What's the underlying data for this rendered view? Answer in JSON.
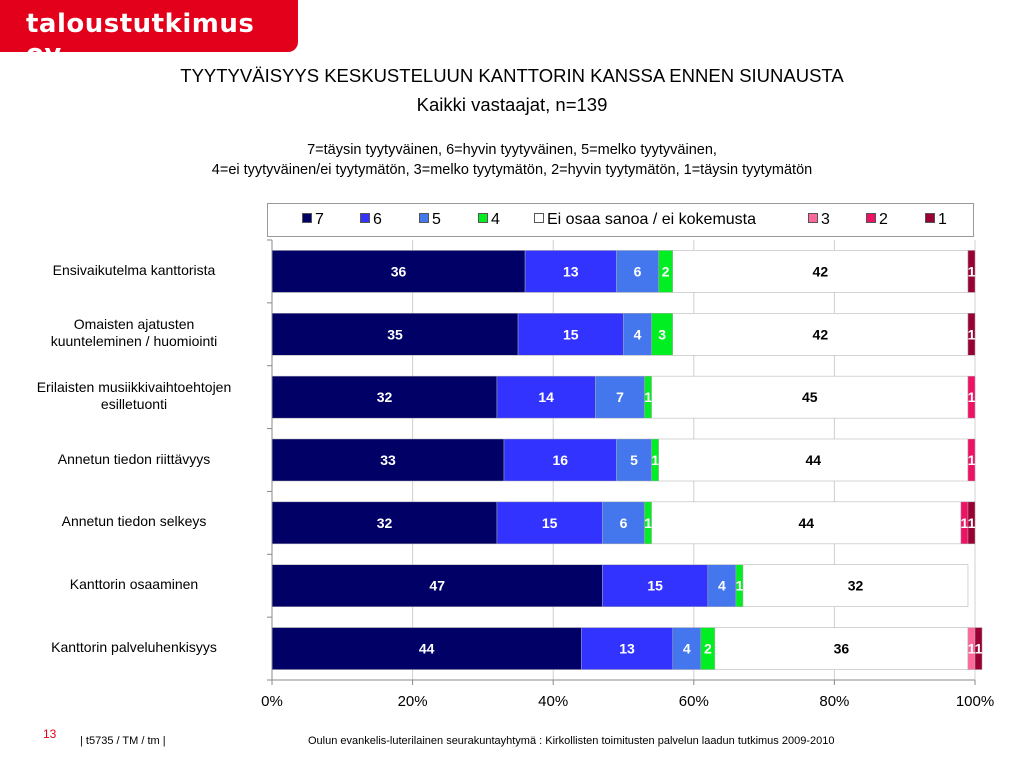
{
  "brand": {
    "logo_text": "taloustutkimus oy",
    "color": "#e2001a"
  },
  "title": "TYYTYVÄISYYS KESKUSTELUUN KANTTORIN KANSSA ENNEN SIUNAUSTA",
  "subtitle_group": "Kaikki  vastaajat, n=139",
  "scale_note_1": "7=täysin tyytyväinen, 6=hyvin tyytyväinen, 5=melko tyytyväinen,",
  "scale_note_2": "4=ei tyytyväinen/ei tyytymätön, 3=melko tyytymätön, 2=hyvin tyytymätön, 1=täysin tyytymätön",
  "footer": {
    "page_number": "13",
    "code": "|  t5735 / TM / tm |",
    "org": "Oulun evankelis-luterilainen seurakuntayhtymä : Kirkollisten toimitusten palvelun laadun tutkimus 2009-2010"
  },
  "chart_data": {
    "type": "bar",
    "orientation": "horizontal",
    "stacked": "percent",
    "xlim": [
      0,
      100
    ],
    "x_ticks": [
      "0%",
      "20%",
      "40%",
      "60%",
      "80%",
      "100%"
    ],
    "legend_position": "top",
    "categories": [
      "Ensivaikutelma kanttorista",
      "Omaisten ajatusten kuunteleminen / huomiointi",
      "Erilaisten musiikkivaihtoehtojen esilletuonti",
      "Annetun tiedon riittävyys",
      "Annetun tiedon selkeys",
      "Kanttorin osaaminen",
      "Kanttorin palveluhenkisyys"
    ],
    "category_lines": [
      [
        "Ensivaikutelma kanttorista"
      ],
      [
        "Omaisten ajatusten",
        "kuunteleminen / huomiointi"
      ],
      [
        "Erilaisten musiikkivaihtoehtojen",
        "esilletuonti"
      ],
      [
        "Annetun tiedon riittävyys"
      ],
      [
        "Annetun tiedon selkeys"
      ],
      [
        "Kanttorin osaaminen"
      ],
      [
        "Kanttorin palveluhenkisyys"
      ]
    ],
    "series": [
      {
        "name": "7",
        "color": "#000066",
        "label_color": "#ffffff",
        "values": [
          36,
          35,
          32,
          33,
          32,
          47,
          44
        ]
      },
      {
        "name": "6",
        "color": "#3333ff",
        "label_color": "#ffffff",
        "values": [
          13,
          15,
          14,
          16,
          15,
          15,
          13
        ]
      },
      {
        "name": "5",
        "color": "#4477ee",
        "label_color": "#ffffff",
        "values": [
          6,
          4,
          7,
          5,
          6,
          4,
          4
        ]
      },
      {
        "name": "4",
        "color": "#00ee22",
        "label_color": "#ffffff",
        "values": [
          2,
          3,
          1,
          1,
          1,
          1,
          2
        ]
      },
      {
        "name": "Ei osaa sanoa / ei kokemusta",
        "color": "#ffffff",
        "label_color": "#000000",
        "values": [
          42,
          42,
          45,
          44,
          44,
          32,
          36
        ]
      },
      {
        "name": "3",
        "color": "#ff6699",
        "label_color": "#ffffff",
        "values": [
          0,
          0,
          0,
          0,
          0,
          0,
          1
        ]
      },
      {
        "name": "2",
        "color": "#ee1166",
        "label_color": "#ffffff",
        "values": [
          0,
          0,
          1,
          1,
          1,
          0,
          0
        ]
      },
      {
        "name": "1",
        "color": "#990033",
        "label_color": "#ffffff",
        "values": [
          1,
          1,
          0,
          0,
          1,
          0,
          1
        ]
      }
    ]
  }
}
